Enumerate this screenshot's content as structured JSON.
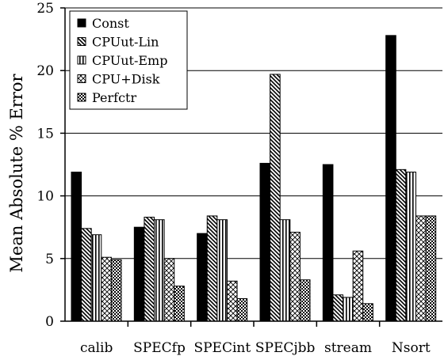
{
  "chart_data": {
    "type": "bar",
    "title": "",
    "xlabel": "",
    "ylabel": "Mean Absolute % Error",
    "ylim": [
      0,
      25
    ],
    "yticks": [
      "0",
      "5",
      "10",
      "15",
      "20",
      "25"
    ],
    "grid": "horizontal",
    "legend_position": "top-left",
    "categories": [
      "calib",
      "SPECfp",
      "SPECint",
      "SPECjbb",
      "stream",
      "Nsort"
    ],
    "series": [
      {
        "name": "Const",
        "pattern": "solid",
        "values": [
          11.9,
          7.5,
          7.0,
          12.6,
          12.5,
          22.8
        ]
      },
      {
        "name": "CPUut-Lin",
        "pattern": "diagonal-hatch",
        "values": [
          7.4,
          8.3,
          8.4,
          19.7,
          2.1,
          12.1
        ]
      },
      {
        "name": "CPUut-Emp",
        "pattern": "vertical-stripes",
        "values": [
          6.9,
          8.1,
          8.1,
          8.1,
          1.9,
          11.9
        ]
      },
      {
        "name": "CPU+Disk",
        "pattern": "crosshatch",
        "values": [
          5.1,
          5.0,
          3.2,
          7.1,
          5.6,
          8.4
        ]
      },
      {
        "name": "Perfctr",
        "pattern": "checkered",
        "values": [
          4.9,
          2.8,
          1.8,
          3.3,
          1.4,
          8.4
        ]
      }
    ]
  }
}
